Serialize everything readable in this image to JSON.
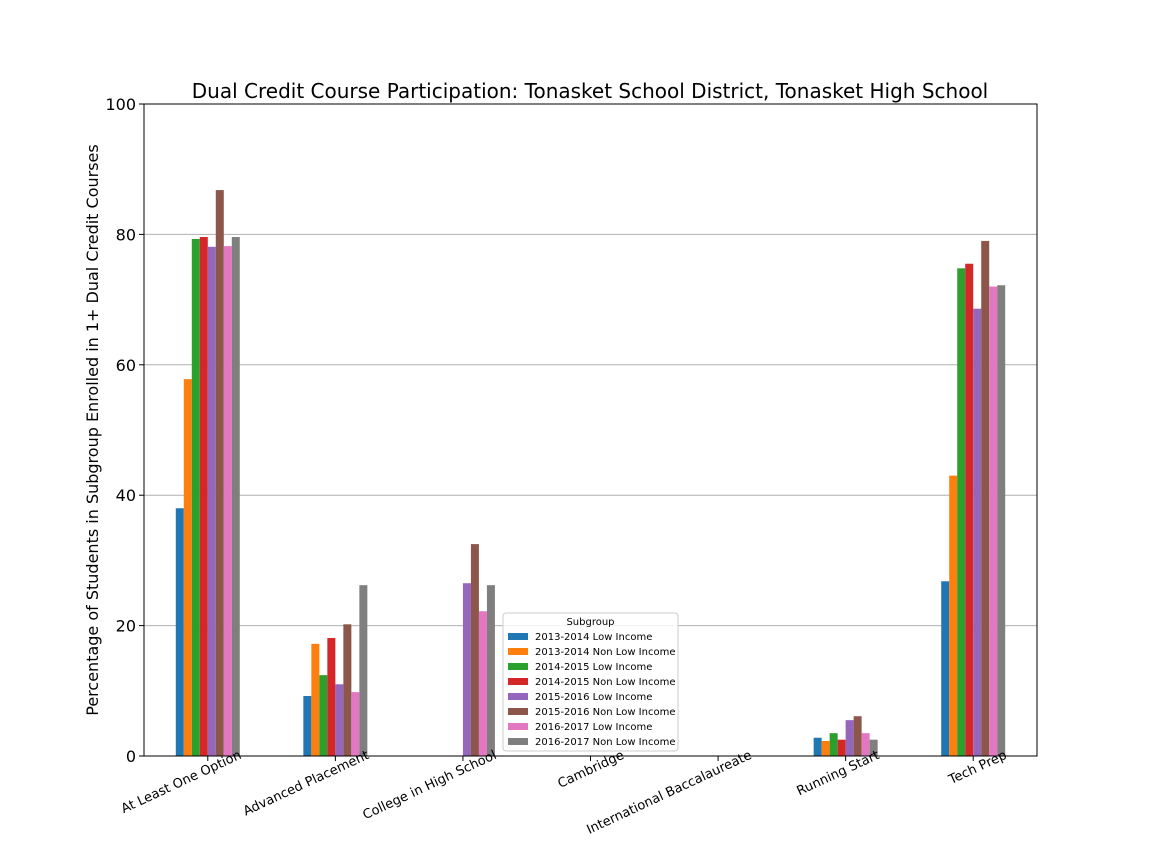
{
  "chart_data": {
    "type": "bar",
    "title": "Dual Credit Course Participation: Tonasket School District, Tonasket High School",
    "ylabel": "Percentage of Students in Subgroup Enrolled in 1+ Dual Credit Courses",
    "xlabel": "",
    "ylim": [
      0,
      100
    ],
    "yticks": [
      "0",
      "20",
      "40",
      "60",
      "80",
      "100"
    ],
    "grid": "horizontal",
    "legend": {
      "title": "Subgroup",
      "placement": "lower-center"
    },
    "categories": [
      "At Least One Option",
      "Advanced Placement",
      "College in High School",
      "Cambridge",
      "International Baccalaureate",
      "Running Start",
      "Tech Prep"
    ],
    "series": [
      {
        "name": "2013-2014 Low Income",
        "color": "#1f77b4",
        "values": [
          38.0,
          9.2,
          null,
          null,
          null,
          2.8,
          26.8
        ]
      },
      {
        "name": "2013-2014 Non Low Income",
        "color": "#ff7f0e",
        "values": [
          57.8,
          17.2,
          null,
          null,
          null,
          2.3,
          43.0
        ]
      },
      {
        "name": "2014-2015 Low Income",
        "color": "#2ca02c",
        "values": [
          79.3,
          12.4,
          null,
          null,
          null,
          3.5,
          74.8
        ]
      },
      {
        "name": "2014-2015 Non Low Income",
        "color": "#d62728",
        "values": [
          79.6,
          18.1,
          null,
          null,
          null,
          2.5,
          75.5
        ]
      },
      {
        "name": "2015-2016 Low Income",
        "color": "#9467bd",
        "values": [
          78.1,
          11.0,
          26.5,
          null,
          null,
          5.5,
          68.6
        ]
      },
      {
        "name": "2015-2016 Non Low Income",
        "color": "#8c564b",
        "values": [
          86.8,
          20.2,
          32.5,
          null,
          null,
          6.1,
          79.0
        ]
      },
      {
        "name": "2016-2017 Low Income",
        "color": "#e377c2",
        "values": [
          78.2,
          9.8,
          22.2,
          null,
          null,
          3.5,
          72.0
        ]
      },
      {
        "name": "2016-2017 Non Low Income",
        "color": "#7f7f7f",
        "values": [
          79.6,
          26.2,
          26.2,
          null,
          null,
          2.5,
          72.2
        ]
      }
    ]
  }
}
